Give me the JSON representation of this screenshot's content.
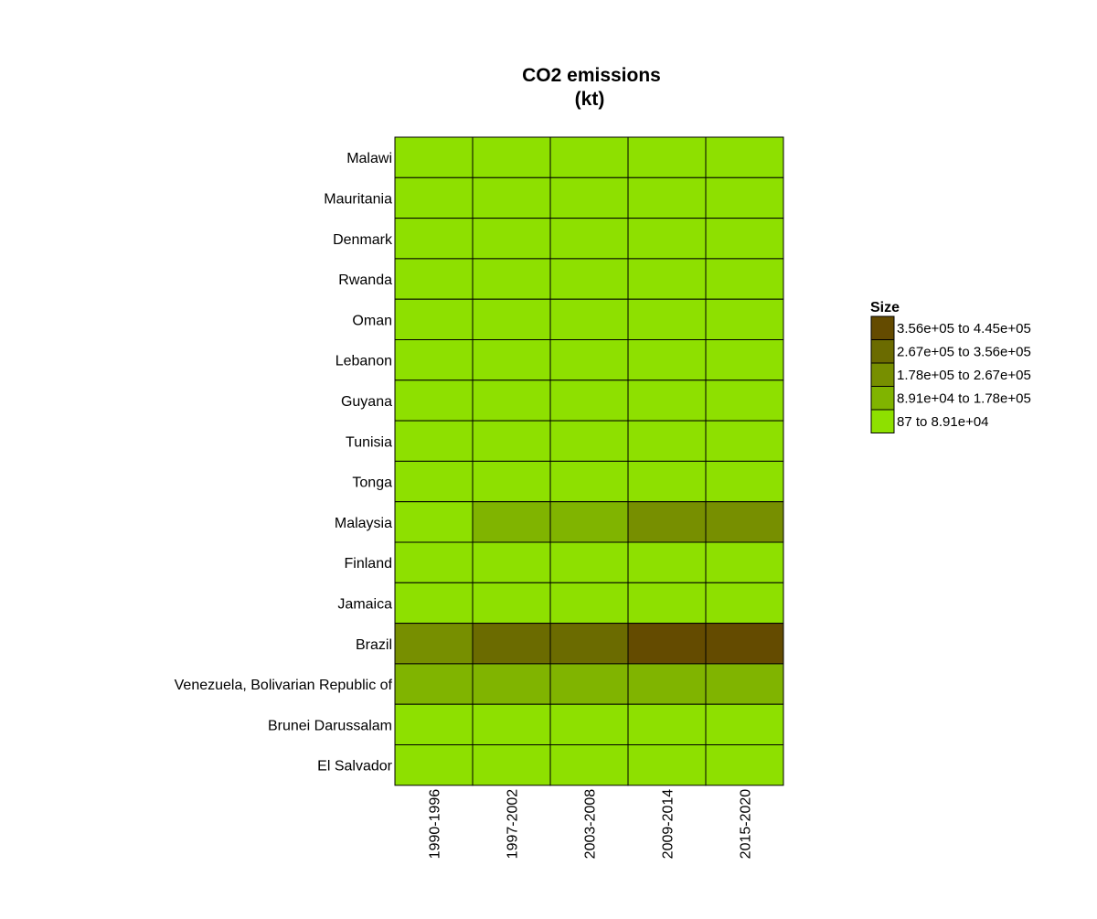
{
  "chart_data": {
    "type": "heatmap",
    "title_lines": [
      "CO2 emissions",
      "(kt)"
    ],
    "rows": [
      "Malawi",
      "Mauritania",
      "Denmark",
      "Rwanda",
      "Oman",
      "Lebanon",
      "Guyana",
      "Tunisia",
      "Tonga",
      "Malaysia",
      "Finland",
      "Jamaica",
      "Brazil",
      "Venezuela, Bolivarian Republic of",
      "Brunei Darussalam",
      "El Salvador"
    ],
    "columns": [
      "1990-1996",
      "1997-2002",
      "2003-2008",
      "2009-2014",
      "2015-2020"
    ],
    "values": [
      [
        0,
        0,
        0,
        0,
        0
      ],
      [
        0,
        0,
        0,
        0,
        0
      ],
      [
        0,
        0,
        0,
        0,
        0
      ],
      [
        0,
        0,
        0,
        0,
        0
      ],
      [
        0,
        0,
        0,
        0,
        0
      ],
      [
        0,
        0,
        0,
        0,
        0
      ],
      [
        0,
        0,
        0,
        0,
        0
      ],
      [
        0,
        0,
        0,
        0,
        0
      ],
      [
        0,
        0,
        0,
        0,
        0
      ],
      [
        0,
        1,
        1,
        2,
        2
      ],
      [
        0,
        0,
        0,
        0,
        0
      ],
      [
        0,
        0,
        0,
        0,
        0
      ],
      [
        2,
        3,
        3,
        4,
        4
      ],
      [
        1,
        1,
        1,
        1,
        1
      ],
      [
        0,
        0,
        0,
        0,
        0
      ],
      [
        0,
        0,
        0,
        0,
        0
      ]
    ],
    "legend": {
      "title": "Size",
      "bins": [
        {
          "label": "3.56e+05 to 4.45e+05",
          "color": "#644b00"
        },
        {
          "label": "2.67e+05 to 3.56e+05",
          "color": "#6b6b00"
        },
        {
          "label": "1.78e+05 to 2.67e+05",
          "color": "#778f00"
        },
        {
          "label": "8.91e+04 to 1.78e+05",
          "color": "#80b400"
        },
        {
          "label": "87 to 8.91e+04",
          "color": "#8ee000"
        }
      ]
    },
    "bin_colors_low_to_high": [
      "#8ee000",
      "#80b400",
      "#778f00",
      "#6b6b00",
      "#644b00"
    ]
  }
}
